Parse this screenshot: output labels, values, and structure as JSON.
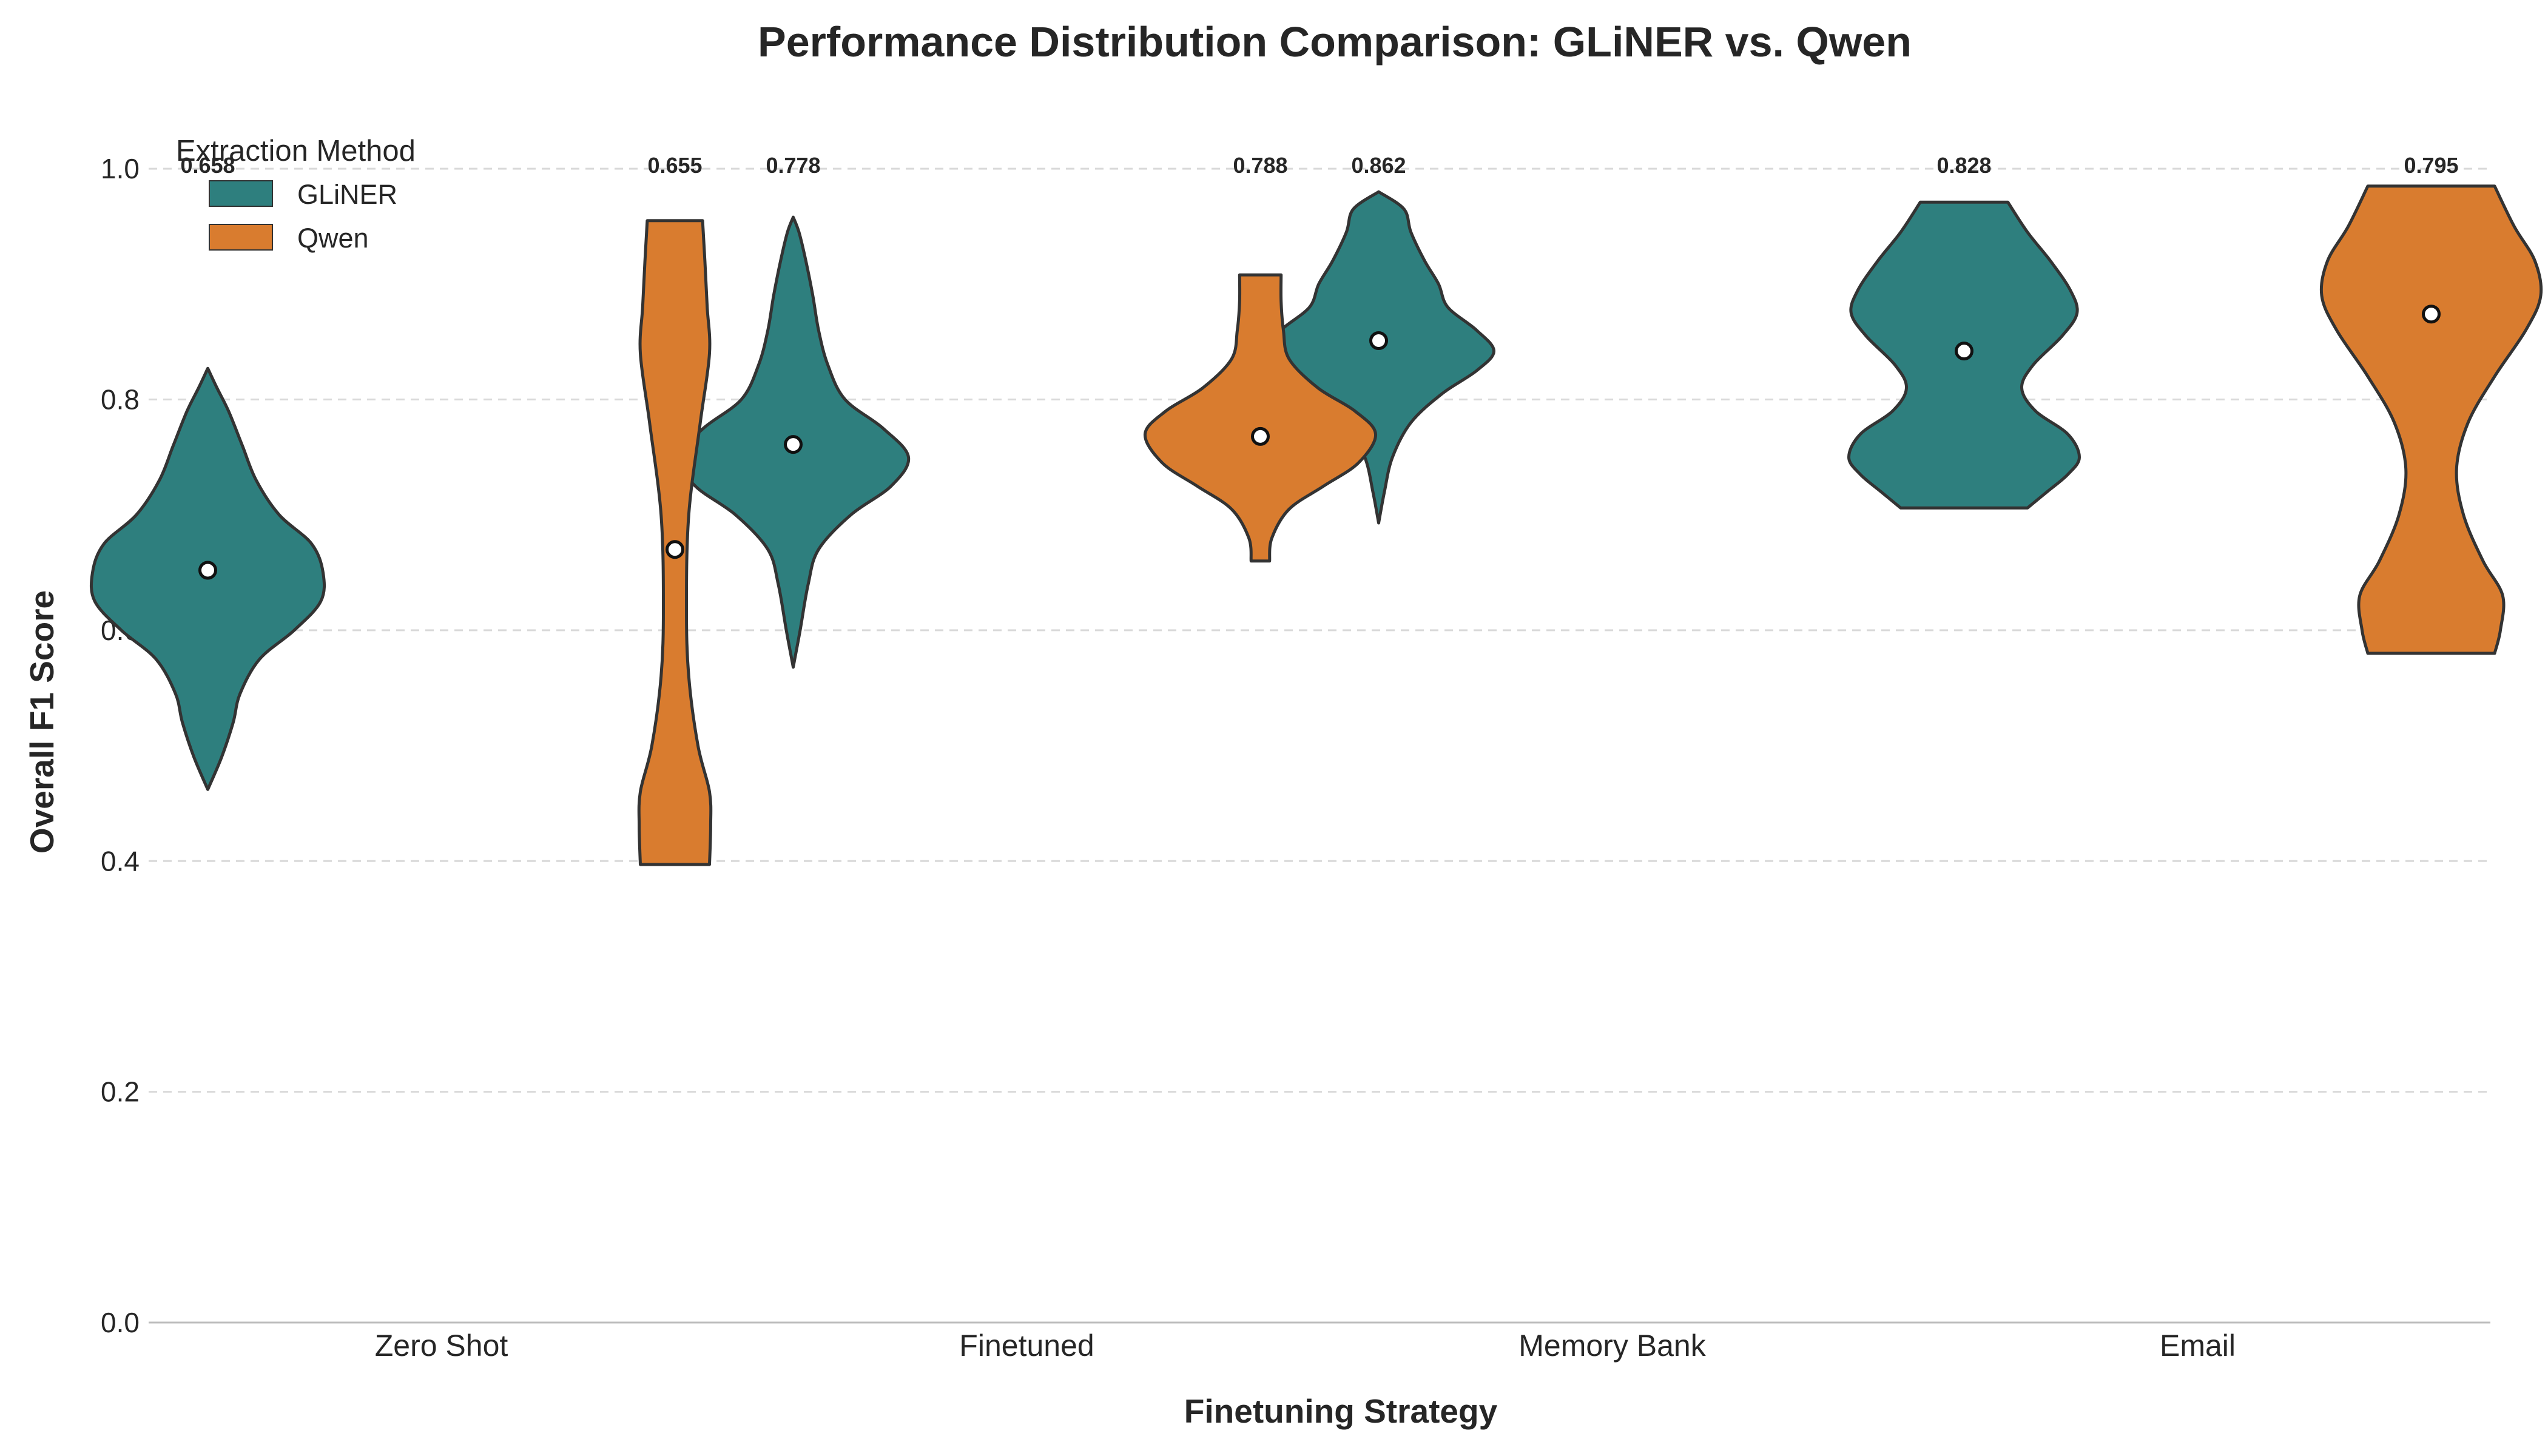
{
  "chart_data": {
    "type": "violin",
    "title": "Performance Distribution Comparison: GLiNER vs. Qwen",
    "xlabel": "Finetuning Strategy",
    "ylabel": "Overall F1 Score",
    "ylim": [
      0,
      1.07
    ],
    "yticks": [
      "0.0",
      "0.2",
      "0.4",
      "0.6",
      "0.8",
      "1.0"
    ],
    "grid": "horizontal dashed",
    "legend": {
      "title": "Extraction Method",
      "placement": "top-left"
    },
    "categories": [
      "Zero Shot",
      "Finetuned",
      "Memory Bank",
      "Email"
    ],
    "series": [
      {
        "name": "GLiNER",
        "color": "#2e7f7e",
        "groups": [
          {
            "category": "Zero Shot",
            "mean_label": "0.658",
            "median": 0.652,
            "min": 0.462,
            "max": 0.827,
            "profile": [
              [
                0.462,
                0.0
              ],
              [
                0.49,
                0.12
              ],
              [
                0.52,
                0.22
              ],
              [
                0.545,
                0.28
              ],
              [
                0.575,
                0.45
              ],
              [
                0.6,
                0.75
              ],
              [
                0.625,
                0.98
              ],
              [
                0.65,
                1.0
              ],
              [
                0.675,
                0.9
              ],
              [
                0.7,
                0.62
              ],
              [
                0.73,
                0.42
              ],
              [
                0.76,
                0.3
              ],
              [
                0.79,
                0.18
              ],
              [
                0.81,
                0.08
              ],
              [
                0.827,
                0.0
              ]
            ]
          },
          {
            "category": "Finetuned",
            "mean_label": "0.778",
            "median": 0.761,
            "min": 0.568,
            "max": 0.958,
            "profile": [
              [
                0.568,
                0.0
              ],
              [
                0.6,
                0.06
              ],
              [
                0.64,
                0.13
              ],
              [
                0.67,
                0.22
              ],
              [
                0.7,
                0.5
              ],
              [
                0.725,
                0.85
              ],
              [
                0.75,
                1.0
              ],
              [
                0.775,
                0.78
              ],
              [
                0.8,
                0.45
              ],
              [
                0.83,
                0.3
              ],
              [
                0.86,
                0.22
              ],
              [
                0.89,
                0.17
              ],
              [
                0.92,
                0.11
              ],
              [
                0.945,
                0.05
              ],
              [
                0.958,
                0.0
              ]
            ]
          },
          {
            "category": "Memory Bank",
            "mean_label": "0.862",
            "median": 0.851,
            "min": 0.693,
            "max": 0.98,
            "profile": [
              [
                0.693,
                0.0
              ],
              [
                0.72,
                0.05
              ],
              [
                0.75,
                0.12
              ],
              [
                0.78,
                0.28
              ],
              [
                0.805,
                0.55
              ],
              [
                0.825,
                0.85
              ],
              [
                0.842,
                1.0
              ],
              [
                0.86,
                0.85
              ],
              [
                0.88,
                0.6
              ],
              [
                0.9,
                0.52
              ],
              [
                0.92,
                0.4
              ],
              [
                0.945,
                0.28
              ],
              [
                0.965,
                0.22
              ],
              [
                0.98,
                0.0
              ]
            ]
          },
          {
            "category": "Email",
            "mean_label": "0.828",
            "median": 0.842,
            "min": 0.706,
            "max": 0.971,
            "profile": [
              [
                0.706,
                0.55
              ],
              [
                0.72,
                0.72
              ],
              [
                0.735,
                0.9
              ],
              [
                0.75,
                1.0
              ],
              [
                0.77,
                0.9
              ],
              [
                0.79,
                0.62
              ],
              [
                0.81,
                0.5
              ],
              [
                0.83,
                0.6
              ],
              [
                0.855,
                0.85
              ],
              [
                0.875,
                0.98
              ],
              [
                0.895,
                0.92
              ],
              [
                0.92,
                0.75
              ],
              [
                0.945,
                0.55
              ],
              [
                0.971,
                0.38
              ]
            ]
          }
        ]
      },
      {
        "name": "Qwen",
        "color": "#d97c2f",
        "groups": [
          {
            "category": "Zero Shot",
            "mean_label": "0.655",
            "median": 0.67,
            "min": 0.397,
            "max": 0.955,
            "profile": [
              [
                0.397,
                0.3
              ],
              [
                0.43,
                0.31
              ],
              [
                0.46,
                0.3
              ],
              [
                0.5,
                0.2
              ],
              [
                0.56,
                0.12
              ],
              [
                0.62,
                0.1
              ],
              [
                0.7,
                0.12
              ],
              [
                0.78,
                0.22
              ],
              [
                0.84,
                0.3
              ],
              [
                0.88,
                0.28
              ],
              [
                0.92,
                0.26
              ],
              [
                0.955,
                0.24
              ]
            ]
          },
          {
            "category": "Finetuned",
            "mean_label": "0.788",
            "median": 0.768,
            "min": 0.66,
            "max": 0.908,
            "profile": [
              [
                0.66,
                0.08
              ],
              [
                0.68,
                0.1
              ],
              [
                0.705,
                0.25
              ],
              [
                0.725,
                0.55
              ],
              [
                0.745,
                0.85
              ],
              [
                0.77,
                1.0
              ],
              [
                0.79,
                0.82
              ],
              [
                0.81,
                0.5
              ],
              [
                0.835,
                0.25
              ],
              [
                0.86,
                0.2
              ],
              [
                0.885,
                0.18
              ],
              [
                0.908,
                0.18
              ]
            ]
          },
          {
            "category": "Email",
            "mean_label": "0.795",
            "median": 0.874,
            "min": 0.58,
            "max": 0.985,
            "profile": [
              [
                0.58,
                0.55
              ],
              [
                0.6,
                0.6
              ],
              [
                0.63,
                0.62
              ],
              [
                0.66,
                0.45
              ],
              [
                0.7,
                0.28
              ],
              [
                0.74,
                0.22
              ],
              [
                0.78,
                0.32
              ],
              [
                0.82,
                0.55
              ],
              [
                0.86,
                0.82
              ],
              [
                0.89,
                0.95
              ],
              [
                0.92,
                0.9
              ],
              [
                0.95,
                0.72
              ],
              [
                0.985,
                0.55
              ]
            ]
          }
        ]
      }
    ]
  }
}
